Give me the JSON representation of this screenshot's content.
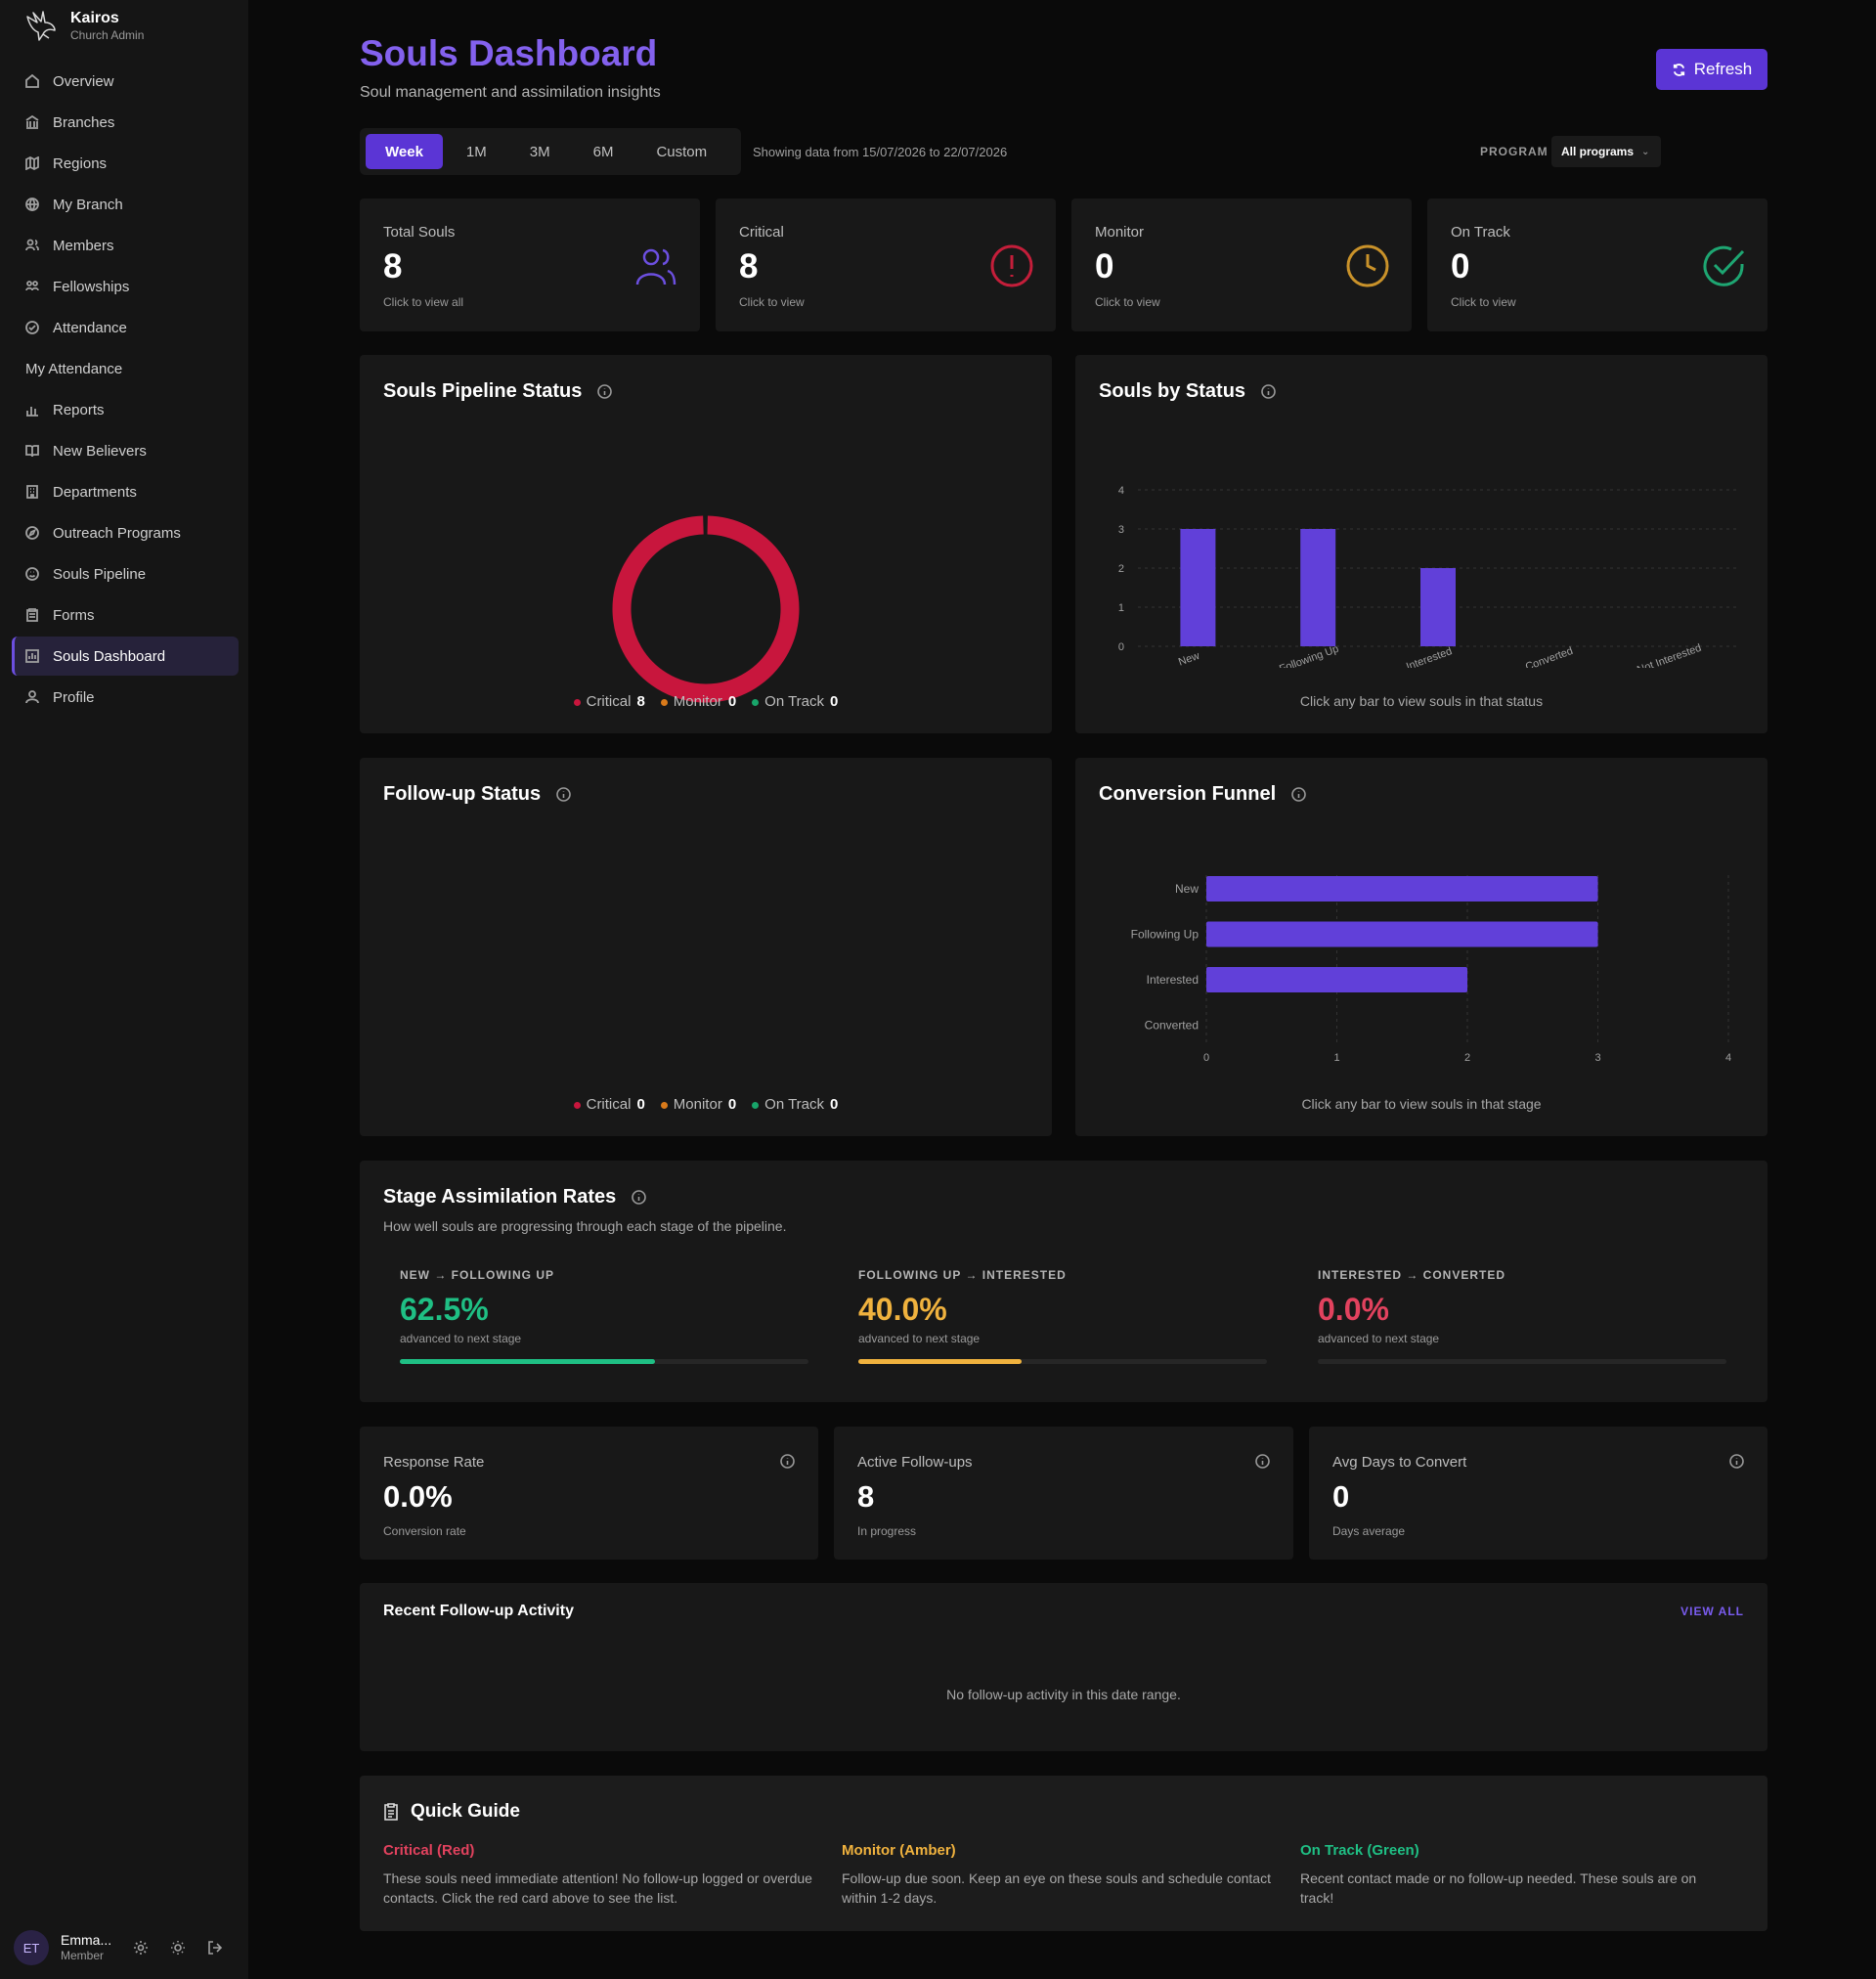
{
  "brand": {
    "name": "Kairos",
    "subtitle": "Church Admin"
  },
  "nav": [
    {
      "label": "Overview",
      "icon": "home-icon"
    },
    {
      "label": "Branches",
      "icon": "landmark-icon"
    },
    {
      "label": "Regions",
      "icon": "map-icon"
    },
    {
      "label": "My Branch",
      "icon": "globe-icon"
    },
    {
      "label": "Members",
      "icon": "users-icon"
    },
    {
      "label": "Fellowships",
      "icon": "group-icon"
    },
    {
      "label": "Attendance",
      "icon": "check-circle-icon"
    },
    {
      "label": "My Attendance",
      "icon": ""
    },
    {
      "label": "Reports",
      "icon": "bar-chart-icon"
    },
    {
      "label": "New Believers",
      "icon": "book-icon"
    },
    {
      "label": "Departments",
      "icon": "building-icon"
    },
    {
      "label": "Outreach Programs",
      "icon": "compass-icon"
    },
    {
      "label": "Souls Pipeline",
      "icon": "smile-icon"
    },
    {
      "label": "Forms",
      "icon": "clipboard-icon"
    },
    {
      "label": "Souls Dashboard",
      "icon": "dashboard-icon",
      "active": true
    },
    {
      "label": "Profile",
      "icon": "user-icon"
    }
  ],
  "user": {
    "initials": "ET",
    "name": "Emma...",
    "role": "Member"
  },
  "header": {
    "title": "Souls Dashboard",
    "subtitle": "Soul management and assimilation insights",
    "refresh_label": "Refresh"
  },
  "range": {
    "tabs": [
      "Week",
      "1M",
      "3M",
      "6M",
      "Custom"
    ],
    "active": "Week",
    "info": "Showing data from 15/07/2026 to 22/07/2026"
  },
  "program": {
    "label": "PROGRAM",
    "value": "All programs"
  },
  "stats": [
    {
      "label": "Total Souls",
      "value": "8",
      "hint": "Click to view all",
      "icon": "users-icon",
      "color": "#6c4fe0"
    },
    {
      "label": "Critical",
      "value": "8",
      "hint": "Click to view",
      "icon": "alert-circle-icon",
      "color": "#c41e3a"
    },
    {
      "label": "Monitor",
      "value": "0",
      "hint": "Click to view",
      "icon": "clock-icon",
      "color": "#c9922a"
    },
    {
      "label": "On Track",
      "value": "0",
      "hint": "Click to view",
      "icon": "check-circle-icon",
      "color": "#1ea672"
    }
  ],
  "pipeline": {
    "title": "Souls Pipeline Status",
    "legend": [
      {
        "label": "Critical",
        "value": "8",
        "color": "#c8163d"
      },
      {
        "label": "Monitor",
        "value": "0",
        "color": "#d97a1a"
      },
      {
        "label": "On Track",
        "value": "0",
        "color": "#18a56a"
      }
    ]
  },
  "by_status": {
    "title": "Souls by Status",
    "note": "Click any bar to view souls in that status"
  },
  "followup": {
    "title": "Follow-up Status",
    "legend": [
      {
        "label": "Critical",
        "value": "0",
        "color": "#c8163d"
      },
      {
        "label": "Monitor",
        "value": "0",
        "color": "#d97a1a"
      },
      {
        "label": "On Track",
        "value": "0",
        "color": "#18a56a"
      }
    ]
  },
  "funnel": {
    "title": "Conversion Funnel",
    "note": "Click any bar to view souls in that stage"
  },
  "chart_data": [
    {
      "type": "pie",
      "categories": [
        "Critical",
        "Monitor",
        "On Track"
      ],
      "values": [
        8,
        0,
        0
      ],
      "colors": [
        "#c8163d",
        "#d97a1a",
        "#18a56a"
      ],
      "title": "Souls Pipeline Status"
    },
    {
      "type": "bar",
      "categories": [
        "New",
        "Following Up",
        "Interested",
        "Converted",
        "Not Interested"
      ],
      "values": [
        3,
        3,
        2,
        0,
        0
      ],
      "ylim": [
        0,
        4
      ],
      "yticks": [
        0,
        1,
        2,
        3,
        4
      ],
      "grid": true,
      "color": "#6140d9",
      "title": "Souls by Status"
    },
    {
      "type": "bar",
      "orientation": "horizontal",
      "categories": [
        "New",
        "Following Up",
        "Interested",
        "Converted"
      ],
      "values": [
        3,
        3,
        2,
        0
      ],
      "xlim": [
        0,
        4
      ],
      "xticks": [
        0,
        1,
        2,
        3,
        4
      ],
      "grid": true,
      "color": "#6140d9",
      "title": "Conversion Funnel"
    }
  ],
  "assimilation": {
    "title": "Stage Assimilation Rates",
    "subtitle": "How well souls are progressing through each stage of the pipeline.",
    "rates": [
      {
        "label": "NEW → FOLLOWING UP",
        "value": "62.5%",
        "percent": 62.5,
        "hint": "advanced to next stage",
        "color": "#1fbf84"
      },
      {
        "label": "FOLLOWING UP → INTERESTED",
        "value": "40.0%",
        "percent": 40.0,
        "hint": "advanced to next stage",
        "color": "#f0b23e"
      },
      {
        "label": "INTERESTED → CONVERTED",
        "value": "0.0%",
        "percent": 0.0,
        "hint": "advanced to next stage",
        "color": "#e2425e"
      }
    ]
  },
  "metrics": [
    {
      "label": "Response Rate",
      "value": "0.0%",
      "hint": "Conversion rate"
    },
    {
      "label": "Active Follow-ups",
      "value": "8",
      "hint": "In progress"
    },
    {
      "label": "Avg Days to Convert",
      "value": "0",
      "hint": "Days average"
    }
  ],
  "activity": {
    "title": "Recent Follow-up Activity",
    "view_all": "VIEW ALL",
    "empty": "No follow-up activity in this date range."
  },
  "guide": {
    "title": "Quick Guide",
    "items": [
      {
        "head": "Critical (Red)",
        "text": "These souls need immediate attention! No follow-up logged or overdue contacts. Click the red card above to see the list.",
        "color": "#e2425e"
      },
      {
        "head": "Monitor (Amber)",
        "text": "Follow-up due soon. Keep an eye on these souls and schedule contact within 1-2 days.",
        "color": "#f0b23e"
      },
      {
        "head": "On Track (Green)",
        "text": "Recent contact made or no follow-up needed. These souls are on track!",
        "color": "#1fbf84"
      }
    ]
  }
}
